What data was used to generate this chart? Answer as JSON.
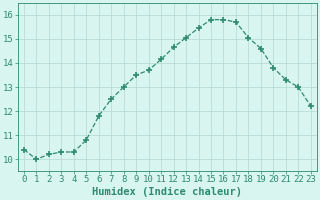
{
  "x": [
    0,
    1,
    2,
    3,
    4,
    5,
    6,
    7,
    8,
    9,
    10,
    11,
    12,
    13,
    14,
    15,
    16,
    17,
    18,
    19,
    20,
    21,
    22,
    23
  ],
  "y": [
    10.4,
    10.0,
    10.2,
    10.3,
    10.3,
    10.8,
    11.8,
    12.5,
    13.0,
    13.5,
    13.7,
    14.15,
    14.65,
    15.05,
    15.45,
    15.8,
    15.8,
    15.7,
    15.05,
    14.6,
    13.8,
    13.3,
    13.0,
    12.2
  ],
  "line_color": "#2e8b6e",
  "marker": "+",
  "marker_size": 4,
  "bg_color": "#d8f5f0",
  "grid_color": "#b8ddd8",
  "xlabel": "Humidex (Indice chaleur)",
  "xlim": [
    -0.5,
    23.5
  ],
  "ylim": [
    9.5,
    16.5
  ],
  "yticks": [
    10,
    11,
    12,
    13,
    14,
    15,
    16
  ],
  "xticks": [
    0,
    1,
    2,
    3,
    4,
    5,
    6,
    7,
    8,
    9,
    10,
    11,
    12,
    13,
    14,
    15,
    16,
    17,
    18,
    19,
    20,
    21,
    22,
    23
  ],
  "tick_color": "#2e8b6e",
  "label_color": "#2e8b6e",
  "xlabel_fontsize": 7.5,
  "tick_fontsize": 6.5,
  "line_width": 0.9
}
